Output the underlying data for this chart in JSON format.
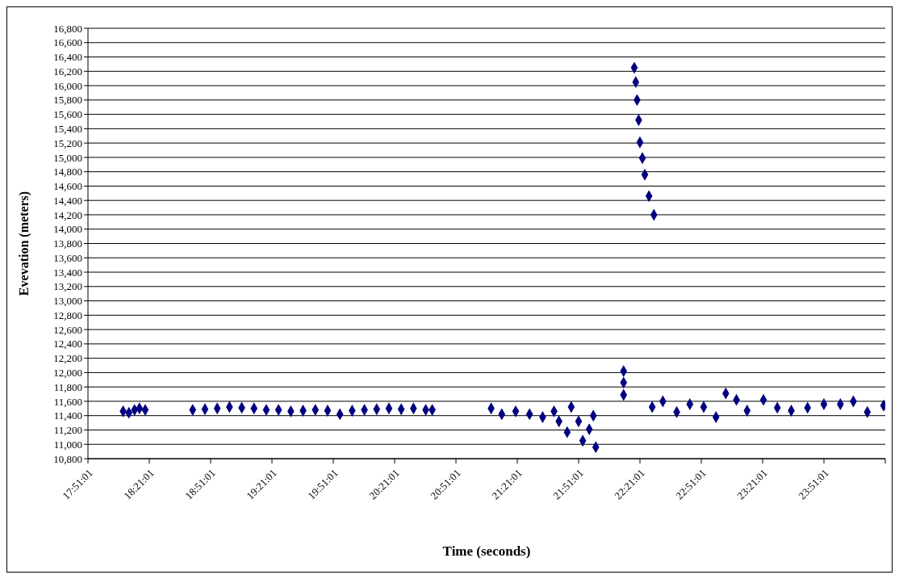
{
  "chart_data": {
    "type": "scatter",
    "xlabel": "Time (seconds)",
    "ylabel": "Evevation (meters)",
    "marker": "diamond",
    "grid": "y",
    "xlim": [
      17.8503,
      24.3503
    ],
    "xticks": [
      {
        "value": 17.8503,
        "label": "17:51:01"
      },
      {
        "value": 18.3503,
        "label": "18:21:01"
      },
      {
        "value": 18.8503,
        "label": "18:51:01"
      },
      {
        "value": 19.3503,
        "label": "19:21:01"
      },
      {
        "value": 19.8503,
        "label": "19:51:01"
      },
      {
        "value": 20.3503,
        "label": "20:21:01"
      },
      {
        "value": 20.8503,
        "label": "20:51:01"
      },
      {
        "value": 21.3503,
        "label": "21:21:01"
      },
      {
        "value": 21.8503,
        "label": "21:51:01"
      },
      {
        "value": 22.3503,
        "label": "22:21:01"
      },
      {
        "value": 22.8503,
        "label": "22:51:01"
      },
      {
        "value": 23.3503,
        "label": "23:21:01"
      },
      {
        "value": 23.8503,
        "label": "23:51:01"
      },
      {
        "value": 24.3503,
        "label": null
      }
    ],
    "ylim": [
      10800,
      16800
    ],
    "yticks": [
      {
        "value": 10800,
        "label": "10,800"
      },
      {
        "value": 11000,
        "label": "11,000"
      },
      {
        "value": 11200,
        "label": "11,200"
      },
      {
        "value": 11400,
        "label": "11,400"
      },
      {
        "value": 11600,
        "label": "11,600"
      },
      {
        "value": 11800,
        "label": "11,800"
      },
      {
        "value": 12000,
        "label": "12,000"
      },
      {
        "value": 12200,
        "label": "12,200"
      },
      {
        "value": 12400,
        "label": "12,400"
      },
      {
        "value": 12600,
        "label": "12,600"
      },
      {
        "value": 12800,
        "label": "12,800"
      },
      {
        "value": 13000,
        "label": "13,000"
      },
      {
        "value": 13200,
        "label": "13,200"
      },
      {
        "value": 13400,
        "label": "13,400"
      },
      {
        "value": 13600,
        "label": "13,600"
      },
      {
        "value": 13800,
        "label": "13,800"
      },
      {
        "value": 14000,
        "label": "14,000"
      },
      {
        "value": 14200,
        "label": "14,200"
      },
      {
        "value": 14400,
        "label": "14,400"
      },
      {
        "value": 14600,
        "label": "14,600"
      },
      {
        "value": 14800,
        "label": "14,800"
      },
      {
        "value": 15000,
        "label": "15,000"
      },
      {
        "value": 15200,
        "label": "15,200"
      },
      {
        "value": 15400,
        "label": "15,400"
      },
      {
        "value": 15600,
        "label": "15,600"
      },
      {
        "value": 15800,
        "label": "15,800"
      },
      {
        "value": 16000,
        "label": "16,000"
      },
      {
        "value": 16200,
        "label": "16,200"
      },
      {
        "value": 16400,
        "label": "16,400"
      },
      {
        "value": 16600,
        "label": "16,600"
      },
      {
        "value": 16800,
        "label": "16,800"
      }
    ],
    "series": [
      {
        "color": "#000080",
        "x": [
          18.137,
          18.184,
          18.23,
          18.27,
          18.317,
          18.704,
          18.804,
          18.904,
          19.004,
          19.104,
          19.204,
          19.304,
          19.404,
          19.504,
          19.604,
          19.704,
          19.804,
          19.904,
          20.004,
          20.104,
          20.204,
          20.304,
          20.404,
          20.504,
          20.604,
          20.657,
          21.137,
          21.224,
          21.337,
          21.45,
          21.557,
          21.65,
          21.69,
          21.757,
          21.79,
          21.85,
          21.884,
          21.937,
          21.97,
          21.99,
          22.217,
          22.217,
          22.217,
          22.304,
          22.316,
          22.327,
          22.34,
          22.35,
          22.37,
          22.39,
          22.424,
          22.464,
          22.45,
          22.537,
          22.65,
          22.757,
          22.87,
          22.97,
          23.05,
          23.137,
          23.224,
          23.357,
          23.47,
          23.584,
          23.717,
          23.85,
          23.984,
          24.09,
          24.204,
          24.337
        ],
        "values": [
          11460,
          11440,
          11480,
          11500,
          11480,
          11480,
          11490,
          11500,
          11520,
          11510,
          11500,
          11480,
          11480,
          11460,
          11470,
          11480,
          11470,
          11420,
          11470,
          11480,
          11490,
          11500,
          11490,
          11500,
          11480,
          11480,
          11500,
          11420,
          11460,
          11420,
          11380,
          11460,
          11320,
          11170,
          11520,
          11320,
          11050,
          11210,
          11400,
          10960,
          12020,
          11860,
          11690,
          16250,
          16050,
          15800,
          15520,
          15210,
          14990,
          14760,
          14460,
          14200,
          11520,
          11600,
          11450,
          11560,
          11520,
          11380,
          11710,
          11620,
          11470,
          11620,
          11510,
          11470,
          11510,
          11560,
          11560,
          11600,
          11450,
          11540
        ]
      }
    ]
  }
}
